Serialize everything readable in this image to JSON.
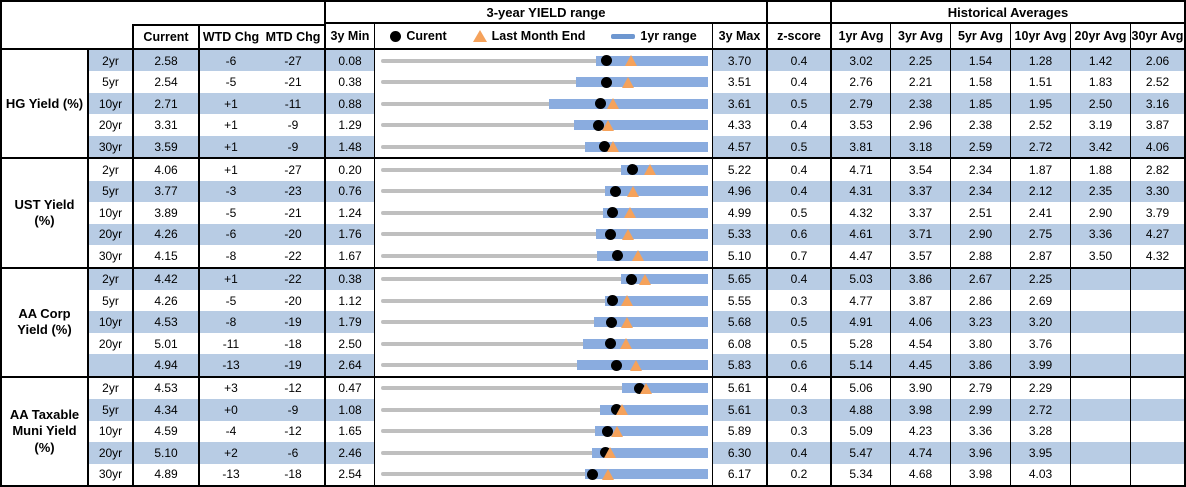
{
  "titles": {
    "yield_range": "3-year YIELD range",
    "historical": "Historical Averages"
  },
  "headers": {
    "current": "Current",
    "wtd": "WTD Chg",
    "mtd": "MTD Chg",
    "min": "3y Min",
    "max": "3y Max",
    "z": "z-score",
    "avgs": [
      "1yr Avg",
      "3yr Avg",
      "5yr Avg",
      "10yr Avg",
      "20yr Avg",
      "30yr Avg"
    ]
  },
  "legend": [
    {
      "icon": "current-dot",
      "label": "Curent"
    },
    {
      "icon": "last-month-triangle",
      "label": "Last Month End"
    },
    {
      "icon": "range-bar",
      "label": "1yr range"
    }
  ],
  "colors": {
    "stripe": "#B8CCE4",
    "range_bar": "#8AACDF",
    "legend_bar": "#6E97D0",
    "track": "#BFBFBF",
    "dot": "#000000",
    "triangle": "#F5A25B",
    "border": "#000000"
  },
  "chart_data": {
    "type": "table",
    "title": "3-year YIELD range with historical averages",
    "note": "Each row contains a bullet chart: gray track = 3y min-to-max range, blue bar = 1yr range, black dot = current, orange triangle = last month end. range_1yr_low and last_month_end are read from the chart.",
    "columns": [
      "Tenor",
      "Current",
      "WTD Chg (bp)",
      "MTD Chg (bp)",
      "3y Min",
      "3y Max",
      "z-score",
      "1yr Avg",
      "3yr Avg",
      "5yr Avg",
      "10yr Avg",
      "20yr Avg",
      "30yr Avg"
    ],
    "groups": [
      {
        "label": "HG Yield (%)",
        "rows": [
          {
            "tenor": "2yr",
            "current": "2.58",
            "wtd": "-6",
            "mtd": "-27",
            "min_3y": "0.08",
            "max_3y": "3.70",
            "z": "0.4",
            "avgs": [
              "3.02",
              "2.25",
              "1.54",
              "1.28",
              "1.42",
              "2.06"
            ],
            "last_month_end": 2.85,
            "range_1yr_low": 2.46
          },
          {
            "tenor": "5yr",
            "current": "2.54",
            "wtd": "-5",
            "mtd": "-21",
            "min_3y": "0.38",
            "max_3y": "3.51",
            "z": "0.4",
            "avgs": [
              "2.76",
              "2.21",
              "1.58",
              "1.51",
              "1.83",
              "2.52"
            ],
            "last_month_end": 2.75,
            "range_1yr_low": 2.25
          },
          {
            "tenor": "10yr",
            "current": "2.71",
            "wtd": "+1",
            "mtd": "-11",
            "min_3y": "0.88",
            "max_3y": "3.61",
            "z": "0.5",
            "avgs": [
              "2.79",
              "2.38",
              "1.85",
              "1.95",
              "2.50",
              "3.16"
            ],
            "last_month_end": 2.82,
            "range_1yr_low": 2.28
          },
          {
            "tenor": "20yr",
            "current": "3.31",
            "wtd": "+1",
            "mtd": "-9",
            "min_3y": "1.29",
            "max_3y": "4.33",
            "z": "0.4",
            "avgs": [
              "3.53",
              "2.96",
              "2.38",
              "2.52",
              "3.19",
              "3.87"
            ],
            "last_month_end": 3.4,
            "range_1yr_low": 3.08
          },
          {
            "tenor": "30yr",
            "current": "3.59",
            "wtd": "+1",
            "mtd": "-9",
            "min_3y": "1.48",
            "max_3y": "4.57",
            "z": "0.5",
            "avgs": [
              "3.81",
              "3.18",
              "2.59",
              "2.72",
              "3.42",
              "4.06"
            ],
            "last_month_end": 3.68,
            "range_1yr_low": 3.41
          }
        ]
      },
      {
        "label": "UST Yield (%)",
        "rows": [
          {
            "tenor": "2yr",
            "current": "4.06",
            "wtd": "+1",
            "mtd": "-27",
            "min_3y": "0.20",
            "max_3y": "5.22",
            "z": "0.4",
            "avgs": [
              "4.71",
              "3.54",
              "2.34",
              "1.87",
              "1.88",
              "2.82"
            ],
            "last_month_end": 4.33,
            "range_1yr_low": 3.88
          },
          {
            "tenor": "5yr",
            "current": "3.77",
            "wtd": "-3",
            "mtd": "-23",
            "min_3y": "0.76",
            "max_3y": "4.96",
            "z": "0.4",
            "avgs": [
              "4.31",
              "3.37",
              "2.34",
              "2.12",
              "2.35",
              "3.30"
            ],
            "last_month_end": 4.0,
            "range_1yr_low": 3.63
          },
          {
            "tenor": "10yr",
            "current": "3.89",
            "wtd": "-5",
            "mtd": "-21",
            "min_3y": "1.24",
            "max_3y": "4.99",
            "z": "0.5",
            "avgs": [
              "4.32",
              "3.37",
              "2.51",
              "2.41",
              "2.90",
              "3.79"
            ],
            "last_month_end": 4.1,
            "range_1yr_low": 3.78
          },
          {
            "tenor": "20yr",
            "current": "4.26",
            "wtd": "-6",
            "mtd": "-20",
            "min_3y": "1.76",
            "max_3y": "5.33",
            "z": "0.6",
            "avgs": [
              "4.61",
              "3.71",
              "2.90",
              "2.75",
              "3.36",
              "4.27"
            ],
            "last_month_end": 4.46,
            "range_1yr_low": 4.11
          },
          {
            "tenor": "30yr",
            "current": "4.15",
            "wtd": "-8",
            "mtd": "-22",
            "min_3y": "1.67",
            "max_3y": "5.10",
            "z": "0.7",
            "avgs": [
              "4.47",
              "3.57",
              "2.88",
              "2.87",
              "3.50",
              "4.32"
            ],
            "last_month_end": 4.37,
            "range_1yr_low": 3.94
          }
        ]
      },
      {
        "label": "AA Corp Yield (%)",
        "rows": [
          {
            "tenor": "2yr",
            "current": "4.42",
            "wtd": "+1",
            "mtd": "-22",
            "min_3y": "0.38",
            "max_3y": "5.65",
            "z": "0.4",
            "avgs": [
              "5.03",
              "3.86",
              "2.67",
              "2.25",
              "",
              ""
            ],
            "last_month_end": 4.64,
            "range_1yr_low": 4.25
          },
          {
            "tenor": "5yr",
            "current": "4.26",
            "wtd": "-5",
            "mtd": "-20",
            "min_3y": "1.12",
            "max_3y": "5.55",
            "z": "0.3",
            "avgs": [
              "4.77",
              "3.87",
              "2.86",
              "2.69",
              "",
              ""
            ],
            "last_month_end": 4.46,
            "range_1yr_low": 4.15
          },
          {
            "tenor": "10yr",
            "current": "4.53",
            "wtd": "-8",
            "mtd": "-19",
            "min_3y": "1.79",
            "max_3y": "5.68",
            "z": "0.5",
            "avgs": [
              "4.91",
              "4.06",
              "3.23",
              "3.20",
              "",
              ""
            ],
            "last_month_end": 4.72,
            "range_1yr_low": 4.32
          },
          {
            "tenor": "20yr",
            "current": "5.01",
            "wtd": "-11",
            "mtd": "-18",
            "min_3y": "2.50",
            "max_3y": "6.08",
            "z": "0.5",
            "avgs": [
              "5.28",
              "4.54",
              "3.80",
              "3.76",
              "",
              ""
            ],
            "last_month_end": 5.19,
            "range_1yr_low": 4.71
          },
          {
            "tenor": "",
            "current": "4.94",
            "wtd": "-13",
            "mtd": "-19",
            "min_3y": "2.64",
            "max_3y": "5.83",
            "z": "0.6",
            "avgs": [
              "5.14",
              "4.45",
              "3.86",
              "3.99",
              "",
              ""
            ],
            "last_month_end": 5.13,
            "range_1yr_low": 4.55
          }
        ]
      },
      {
        "label": "AA Taxable Muni Yield (%)",
        "rows": [
          {
            "tenor": "2yr",
            "current": "4.53",
            "wtd": "+3",
            "mtd": "-12",
            "min_3y": "0.47",
            "max_3y": "5.61",
            "z": "0.4",
            "avgs": [
              "5.06",
              "3.90",
              "2.79",
              "2.29",
              "",
              ""
            ],
            "last_month_end": 4.65,
            "range_1yr_low": 4.26
          },
          {
            "tenor": "5yr",
            "current": "4.34",
            "wtd": "+0",
            "mtd": "-9",
            "min_3y": "1.08",
            "max_3y": "5.61",
            "z": "0.3",
            "avgs": [
              "4.88",
              "3.98",
              "2.99",
              "2.72",
              "",
              ""
            ],
            "last_month_end": 4.43,
            "range_1yr_low": 4.11
          },
          {
            "tenor": "10yr",
            "current": "4.59",
            "wtd": "-4",
            "mtd": "-12",
            "min_3y": "1.65",
            "max_3y": "5.89",
            "z": "0.3",
            "avgs": [
              "5.09",
              "4.23",
              "3.36",
              "3.28",
              "",
              ""
            ],
            "last_month_end": 4.71,
            "range_1yr_low": 4.43
          },
          {
            "tenor": "20yr",
            "current": "5.10",
            "wtd": "+2",
            "mtd": "-6",
            "min_3y": "2.46",
            "max_3y": "6.30",
            "z": "0.4",
            "avgs": [
              "5.47",
              "4.74",
              "3.96",
              "3.95",
              "",
              ""
            ],
            "last_month_end": 5.16,
            "range_1yr_low": 4.94
          },
          {
            "tenor": "30yr",
            "current": "4.89",
            "wtd": "-13",
            "mtd": "-18",
            "min_3y": "2.54",
            "max_3y": "6.17",
            "z": "0.2",
            "avgs": [
              "5.34",
              "4.68",
              "3.98",
              "4.03",
              "",
              ""
            ],
            "last_month_end": 5.07,
            "range_1yr_low": 4.8
          }
        ]
      }
    ]
  }
}
